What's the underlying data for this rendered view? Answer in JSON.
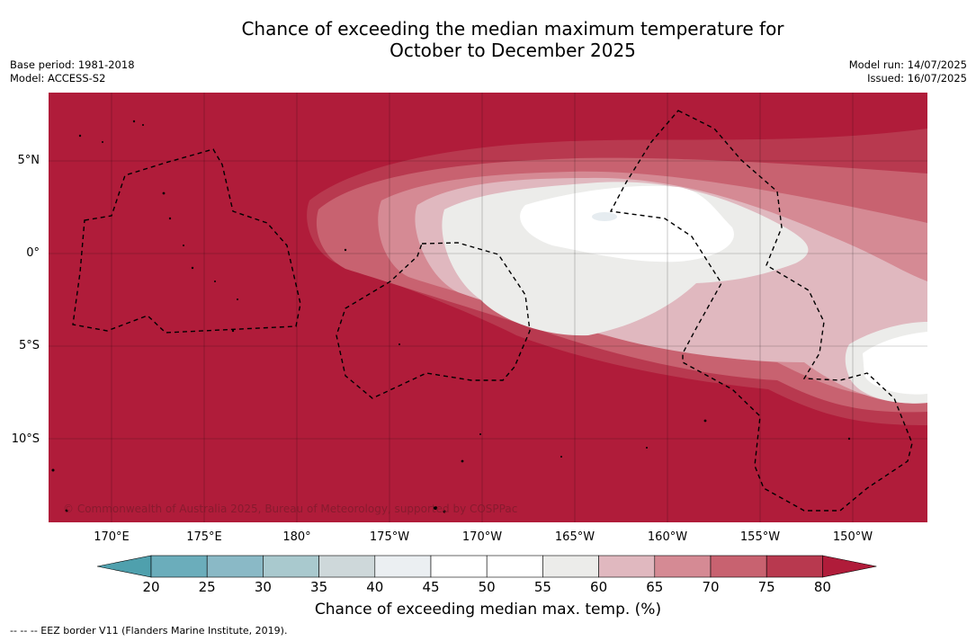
{
  "title_line1": "Chance of exceeding the median maximum temperature for",
  "title_line2": "October to December 2025",
  "meta_left": {
    "base_period": "Base period: 1981-2018",
    "model": "Model: ACCESS-S2"
  },
  "meta_right": {
    "model_run": "Model run: 14/07/2025",
    "issued": "Issued: 16/07/2025"
  },
  "lat_labels": [
    "5°N",
    "0°",
    "5°S",
    "10°S"
  ],
  "lon_labels": [
    "170°E",
    "175°E",
    "180°",
    "175°W",
    "170°W",
    "165°W",
    "160°W",
    "155°W",
    "150°W"
  ],
  "copyright": "© Commonwealth of Australia 2025, Bureau of Meteorology, supported by COSPPac",
  "colorbar": {
    "ticks": [
      "20",
      "25",
      "30",
      "35",
      "40",
      "45",
      "50",
      "55",
      "60",
      "65",
      "70",
      "75",
      "80"
    ],
    "colors": [
      "#4fa0ad",
      "#6badbb",
      "#8ab9c6",
      "#a9c9ce",
      "#ced8da",
      "#ebeff2",
      "#ffffff",
      "#ffffff",
      "#ececea",
      "#e0b8bf",
      "#d58a94",
      "#c86270",
      "#b8394f",
      "#b01c3a"
    ],
    "title": "Chance of exceeding median max. temp. (%)"
  },
  "footer": "--  --  -- EEZ border V11 (Flanders Marine Institute, 2019)."
}
